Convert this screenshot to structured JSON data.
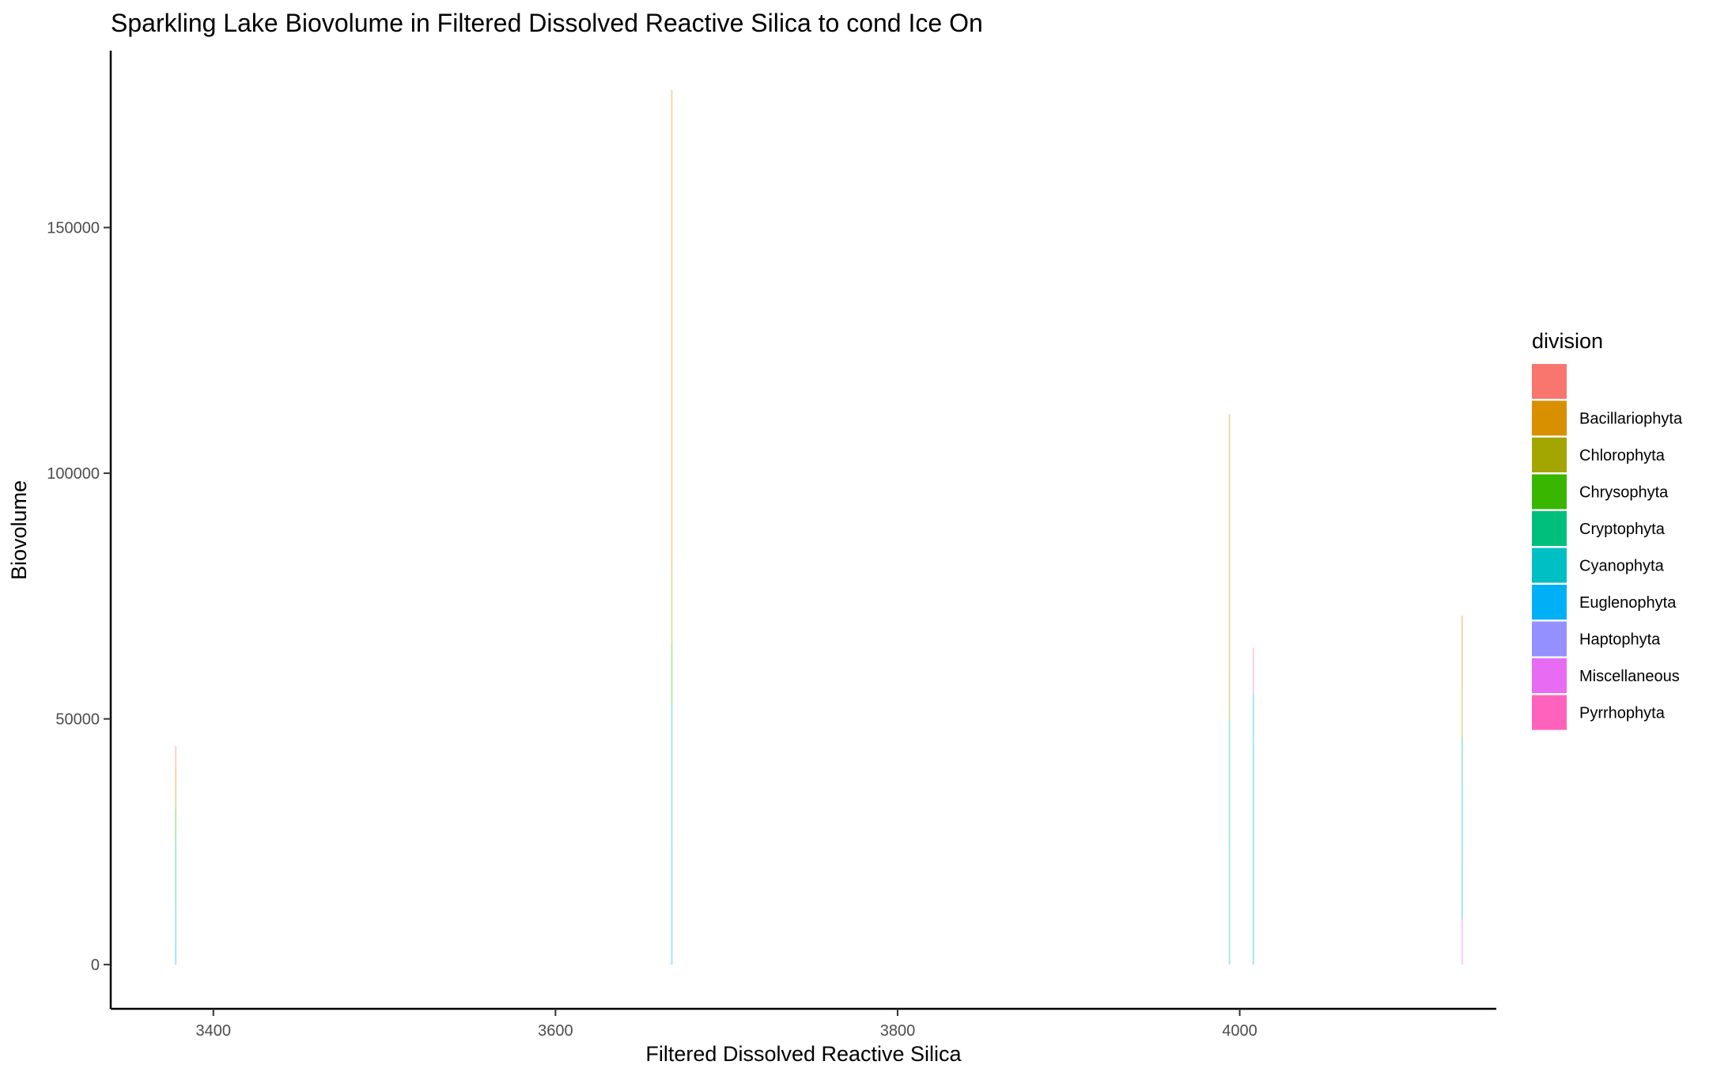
{
  "chart_data": {
    "type": "bar",
    "title": "Sparkling Lake Biovolume in Filtered Dissolved Reactive Silica to cond Ice On",
    "xlabel": "Filtered Dissolved Reactive Silica",
    "ylabel": "Biovolume",
    "xlim": [
      3340,
      4150
    ],
    "ylim": [
      -9000,
      186000
    ],
    "x_ticks": [
      3400,
      3600,
      3800,
      4000
    ],
    "y_ticks": [
      0,
      50000,
      100000,
      150000
    ],
    "grid": false,
    "legend": {
      "title": "division",
      "position": "right",
      "entries": [
        {
          "label": "",
          "color": "#F8766D"
        },
        {
          "label": "Bacillariophyta",
          "color": "#D89000"
        },
        {
          "label": "Chlorophyta",
          "color": "#A3A500"
        },
        {
          "label": "Chrysophyta",
          "color": "#39B600"
        },
        {
          "label": "Cryptophyta",
          "color": "#00BF7D"
        },
        {
          "label": "Cyanophyta",
          "color": "#00BFC4"
        },
        {
          "label": "Euglenophyta",
          "color": "#00B0F6"
        },
        {
          "label": "Haptophyta",
          "color": "#9590FF"
        },
        {
          "label": "Miscellaneous",
          "color": "#E76BF3"
        },
        {
          "label": "Pyrrhophyta",
          "color": "#FF62BC"
        }
      ]
    },
    "stacks": [
      {
        "x": 3378,
        "segments": [
          {
            "division": "Euglenophyta",
            "value": 4000
          },
          {
            "division": "Cyanophyta",
            "value": 8000
          },
          {
            "division": "Cryptophyta",
            "value": 14000
          },
          {
            "division": "Chrysophyta",
            "value": 6000
          },
          {
            "division": "Chlorophyta",
            "value": 5000
          },
          {
            "division": "Bacillariophyta",
            "value": 3000
          },
          {
            "division": "",
            "value": 4500
          }
        ]
      },
      {
        "x": 3668,
        "segments": [
          {
            "division": "Euglenophyta",
            "value": 25000
          },
          {
            "division": "Cyanophyta",
            "value": 28000
          },
          {
            "division": "Chrysophyta",
            "value": 12000
          },
          {
            "division": "Chlorophyta",
            "value": 15000
          },
          {
            "division": "Bacillariophyta",
            "value": 98000
          }
        ]
      },
      {
        "x": 3994,
        "segments": [
          {
            "division": "Cyanophyta",
            "value": 25000
          },
          {
            "division": "Cryptophyta",
            "value": 25000
          },
          {
            "division": "Chlorophyta",
            "value": 10000
          },
          {
            "division": "Bacillariophyta",
            "value": 52000
          }
        ]
      },
      {
        "x": 4008,
        "segments": [
          {
            "division": "Euglenophyta",
            "value": 45000
          },
          {
            "division": "Cyanophyta",
            "value": 10000
          },
          {
            "division": "Pyrrhophyta",
            "value": 9500
          }
        ]
      },
      {
        "x": 4130,
        "segments": [
          {
            "division": "Miscellaneous",
            "value": 9000
          },
          {
            "division": "Euglenophyta",
            "value": 12000
          },
          {
            "division": "Cyanophyta",
            "value": 15000
          },
          {
            "division": "Cryptophyta",
            "value": 10000
          },
          {
            "division": "Chlorophyta",
            "value": 10000
          },
          {
            "division": "Bacillariophyta",
            "value": 15000
          }
        ]
      }
    ]
  }
}
